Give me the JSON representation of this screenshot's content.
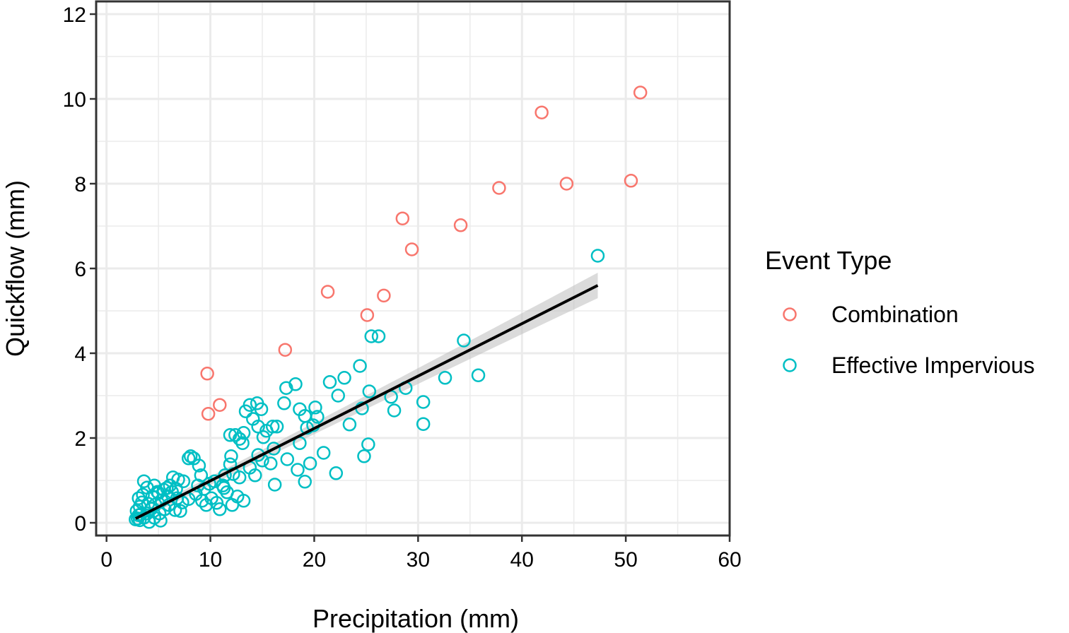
{
  "chart_data": {
    "type": "scatter",
    "xlabel": "Precipitation (mm)",
    "ylabel": "Quickflow (mm)",
    "xlim": [
      -1,
      60
    ],
    "ylim": [
      -0.3,
      12.3
    ],
    "x_ticks": [
      0,
      10,
      20,
      30,
      40,
      50,
      60
    ],
    "y_ticks": [
      0,
      2,
      4,
      6,
      8,
      10,
      12
    ],
    "x_tick_labels": [
      "0",
      "10",
      "20",
      "30",
      "40",
      "50",
      "60"
    ],
    "y_tick_labels": [
      "0",
      "2",
      "4",
      "6",
      "8",
      "10",
      "12"
    ],
    "grid": true,
    "legend": {
      "title": "Event Type",
      "placement": "right",
      "entries": [
        "Combination",
        "Effective Impervious"
      ]
    },
    "colors": {
      "Combination": "#F8766D",
      "Effective Impervious": "#00BFC4",
      "fit_line": "#000000",
      "ribbon": "#BEBEBE"
    },
    "series": [
      {
        "name": "Combination",
        "points": [
          [
            51.4,
            10.15
          ],
          [
            41.9,
            9.68
          ],
          [
            37.8,
            7.9
          ],
          [
            44.3,
            8.0
          ],
          [
            50.5,
            8.07
          ],
          [
            28.5,
            7.18
          ],
          [
            34.1,
            7.02
          ],
          [
            29.4,
            6.45
          ],
          [
            21.3,
            5.45
          ],
          [
            26.7,
            5.36
          ],
          [
            25.1,
            4.9
          ],
          [
            17.2,
            4.08
          ],
          [
            9.7,
            3.52
          ],
          [
            10.9,
            2.78
          ],
          [
            9.8,
            2.57
          ]
        ]
      },
      {
        "name": "Effective Impervious",
        "points": [
          [
            47.3,
            6.3
          ],
          [
            34.4,
            4.3
          ],
          [
            25.5,
            4.4
          ],
          [
            26.2,
            4.4
          ],
          [
            24.4,
            3.7
          ],
          [
            35.8,
            3.48
          ],
          [
            32.6,
            3.42
          ],
          [
            28.8,
            3.18
          ],
          [
            25.3,
            3.1
          ],
          [
            22.9,
            3.42
          ],
          [
            21.5,
            3.32
          ],
          [
            22.3,
            3.0
          ],
          [
            27.4,
            2.97
          ],
          [
            27.7,
            2.65
          ],
          [
            30.5,
            2.85
          ],
          [
            30.5,
            2.33
          ],
          [
            23.4,
            2.32
          ],
          [
            24.6,
            2.7
          ],
          [
            18.2,
            3.27
          ],
          [
            17.3,
            3.18
          ],
          [
            17.1,
            2.82
          ],
          [
            18.6,
            2.68
          ],
          [
            19.1,
            2.52
          ],
          [
            20.1,
            2.72
          ],
          [
            20.3,
            2.5
          ],
          [
            19.3,
            2.24
          ],
          [
            19.9,
            2.3
          ],
          [
            14.5,
            2.82
          ],
          [
            13.8,
            2.78
          ],
          [
            13.4,
            2.63
          ],
          [
            14.9,
            2.68
          ],
          [
            14.1,
            2.45
          ],
          [
            14.6,
            2.27
          ],
          [
            15.1,
            2.02
          ],
          [
            15.4,
            2.17
          ],
          [
            16.0,
            2.27
          ],
          [
            16.4,
            2.27
          ],
          [
            11.9,
            2.07
          ],
          [
            12.4,
            2.07
          ],
          [
            12.8,
            1.98
          ],
          [
            13.1,
            1.88
          ],
          [
            13.2,
            2.12
          ],
          [
            12.0,
            1.57
          ],
          [
            11.9,
            1.38
          ],
          [
            14.6,
            1.6
          ],
          [
            15.0,
            1.47
          ],
          [
            15.8,
            1.4
          ],
          [
            16.1,
            1.75
          ],
          [
            17.4,
            1.5
          ],
          [
            18.6,
            1.88
          ],
          [
            19.6,
            1.4
          ],
          [
            18.4,
            1.25
          ],
          [
            20.9,
            1.65
          ],
          [
            22.1,
            1.17
          ],
          [
            25.2,
            1.85
          ],
          [
            24.8,
            1.57
          ],
          [
            16.2,
            0.9
          ],
          [
            19.1,
            0.97
          ],
          [
            13.8,
            1.3
          ],
          [
            14.3,
            1.12
          ],
          [
            12.8,
            1.07
          ],
          [
            12.2,
            1.15
          ],
          [
            11.4,
            1.12
          ],
          [
            10.4,
            0.98
          ],
          [
            11.2,
            0.88
          ],
          [
            8.9,
            1.35
          ],
          [
            9.1,
            1.12
          ],
          [
            8.4,
            1.52
          ],
          [
            7.9,
            1.52
          ],
          [
            8.1,
            1.57
          ],
          [
            7.4,
            0.98
          ],
          [
            6.9,
            1.02
          ],
          [
            6.4,
            1.07
          ],
          [
            6.1,
            0.88
          ],
          [
            5.5,
            0.78
          ],
          [
            4.6,
            0.88
          ],
          [
            4.9,
            0.73
          ],
          [
            3.6,
            0.98
          ],
          [
            3.9,
            0.83
          ],
          [
            3.1,
            0.58
          ],
          [
            3.4,
            0.48
          ],
          [
            3.2,
            0.38
          ],
          [
            2.9,
            0.28
          ],
          [
            3.1,
            0.18
          ],
          [
            2.8,
            0.08
          ],
          [
            3.2,
            0.06
          ],
          [
            3.6,
            0.12
          ],
          [
            3.9,
            0.22
          ],
          [
            4.3,
            0.33
          ],
          [
            4.7,
            0.43
          ],
          [
            5.3,
            0.53
          ],
          [
            5.9,
            0.63
          ],
          [
            6.3,
            0.73
          ],
          [
            6.8,
            0.58
          ],
          [
            7.3,
            0.48
          ],
          [
            7.9,
            0.56
          ],
          [
            8.6,
            0.68
          ],
          [
            9.2,
            0.52
          ],
          [
            9.6,
            0.42
          ],
          [
            10.1,
            0.58
          ],
          [
            10.6,
            0.47
          ],
          [
            10.9,
            0.32
          ],
          [
            11.6,
            0.72
          ],
          [
            12.6,
            0.62
          ],
          [
            13.2,
            0.52
          ],
          [
            12.1,
            0.42
          ],
          [
            11.3,
            0.82
          ],
          [
            9.9,
            0.92
          ],
          [
            9.4,
            0.8
          ],
          [
            8.8,
            0.88
          ],
          [
            4.1,
            0.02
          ],
          [
            4.6,
            0.12
          ],
          [
            5.1,
            0.22
          ],
          [
            5.6,
            0.32
          ],
          [
            6.0,
            0.42
          ],
          [
            6.6,
            0.3
          ],
          [
            7.1,
            0.28
          ],
          [
            5.2,
            0.05
          ],
          [
            4.0,
            0.45
          ],
          [
            4.4,
            0.62
          ],
          [
            5.0,
            0.7
          ],
          [
            5.8,
            0.82
          ],
          [
            6.7,
            0.8
          ],
          [
            3.5,
            0.66
          ],
          [
            3.0,
            0.1
          ],
          [
            3.3,
            0.2
          ]
        ]
      }
    ],
    "fit_line": {
      "x_range": [
        2.8,
        47.3
      ],
      "y_range": [
        0.1,
        5.6
      ],
      "ribbon_halfwidth": [
        0.09,
        0.3
      ]
    }
  }
}
